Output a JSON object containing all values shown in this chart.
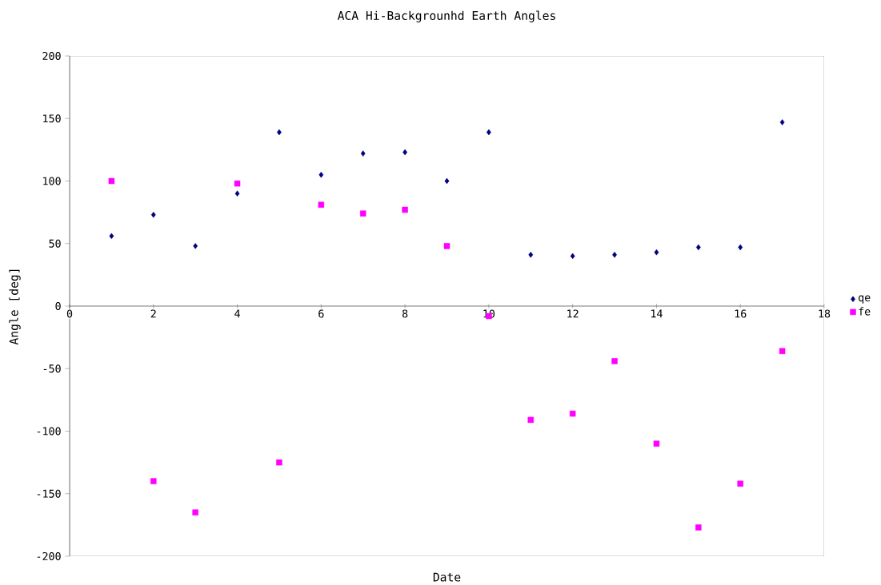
{
  "chart_data": {
    "type": "scatter",
    "title": "ACA Hi-Backgrounhd Earth Angles",
    "xlabel": "Date",
    "ylabel": "Angle [deg]",
    "x": [
      1,
      2,
      3,
      4,
      5,
      6,
      7,
      8,
      9,
      10,
      11,
      12,
      13,
      14,
      15,
      16,
      17
    ],
    "series": [
      {
        "name": "qe",
        "color": "#000080",
        "marker": "diamond",
        "values": [
          56,
          73,
          48,
          90,
          139,
          105,
          122,
          123,
          100,
          139,
          41,
          40,
          41,
          43,
          47,
          47,
          147
        ]
      },
      {
        "name": "fe",
        "color": "#ff00ff",
        "marker": "square",
        "values": [
          100,
          -140,
          -165,
          98,
          -125,
          81,
          74,
          77,
          48,
          -8,
          -91,
          -86,
          -44,
          -110,
          -177,
          -142,
          -36
        ]
      }
    ],
    "xlim": [
      0,
      18
    ],
    "xticks": [
      0,
      2,
      4,
      6,
      8,
      10,
      12,
      14,
      16,
      18
    ],
    "ylim": [
      -200,
      200
    ],
    "yticks": [
      -200,
      -150,
      -100,
      -50,
      0,
      50,
      100,
      150,
      200
    ],
    "grid": false,
    "legend": "right"
  }
}
